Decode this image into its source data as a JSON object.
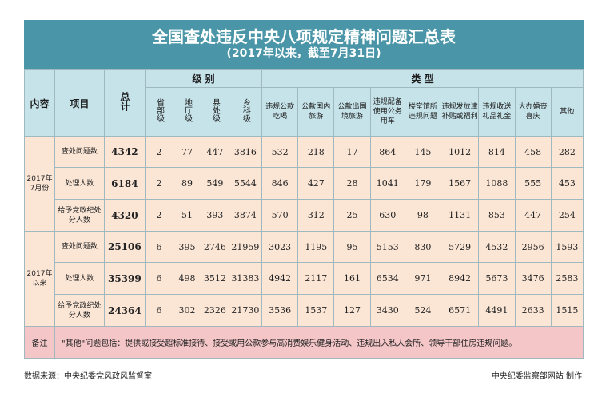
{
  "title": "全国查处违反中央八项规定精神问题汇总表",
  "subtitle": "(2017年以来，截至7月31日)",
  "header": {
    "content": "内容",
    "item": "项目",
    "total": "总计",
    "level_group": "级 别",
    "type_group": "类 型",
    "levels": [
      "省部级",
      "地厅级",
      "县处级",
      "乡科级"
    ],
    "types": [
      "违规公款吃喝",
      "公款国内旅游",
      "公款出国境旅游",
      "违规配备使用公务用车",
      "楼堂馆所违规问题",
      "违规发放津补贴或福利",
      "违规收送礼品礼金",
      "大办婚丧喜庆",
      "其他"
    ]
  },
  "groups": [
    {
      "label": "2017年7月份",
      "rows": [
        {
          "item": "查处问题数",
          "total": "4342",
          "levels": [
            "2",
            "77",
            "447",
            "3816"
          ],
          "types": [
            "532",
            "218",
            "17",
            "864",
            "145",
            "1012",
            "814",
            "458",
            "282"
          ]
        },
        {
          "item": "处理人数",
          "total": "6184",
          "levels": [
            "2",
            "89",
            "549",
            "5544"
          ],
          "types": [
            "846",
            "427",
            "28",
            "1041",
            "179",
            "1567",
            "1088",
            "555",
            "453"
          ]
        },
        {
          "item": "给予党政纪处分人数",
          "total": "4320",
          "levels": [
            "2",
            "51",
            "393",
            "3874"
          ],
          "types": [
            "570",
            "312",
            "25",
            "630",
            "98",
            "1131",
            "853",
            "447",
            "254"
          ]
        }
      ]
    },
    {
      "label": "2017年以来",
      "rows": [
        {
          "item": "查处问题数",
          "total": "25106",
          "levels": [
            "6",
            "395",
            "2746",
            "21959"
          ],
          "types": [
            "3023",
            "1195",
            "95",
            "5153",
            "830",
            "5729",
            "4532",
            "2956",
            "1593"
          ]
        },
        {
          "item": "处理人数",
          "total": "35399",
          "levels": [
            "6",
            "498",
            "3512",
            "31383"
          ],
          "types": [
            "4942",
            "2117",
            "161",
            "6534",
            "971",
            "8942",
            "5673",
            "3476",
            "2583"
          ]
        },
        {
          "item": "给予党政纪处分人数",
          "total": "24364",
          "levels": [
            "6",
            "302",
            "2326",
            "21730"
          ],
          "types": [
            "3536",
            "1537",
            "127",
            "3430",
            "524",
            "6571",
            "4491",
            "2633",
            "1515"
          ]
        }
      ]
    }
  ],
  "note": {
    "label": "备注",
    "text": "\"其他\"问题包括：提供或接受超标准接待、接受或用公款参与高消费娱乐健身活动、违规出入私人会所、领导干部住房违规问题。"
  },
  "footer": {
    "source": "数据来源：中央纪委党风政风监督室",
    "maker": "中央纪委监察部网站 制作"
  },
  "colors": {
    "title_bg": "#4a96a8",
    "header_bg": "#c6e3ea",
    "cell_bg": "#fbe6d6",
    "note_bg": "#f4c6c8"
  }
}
